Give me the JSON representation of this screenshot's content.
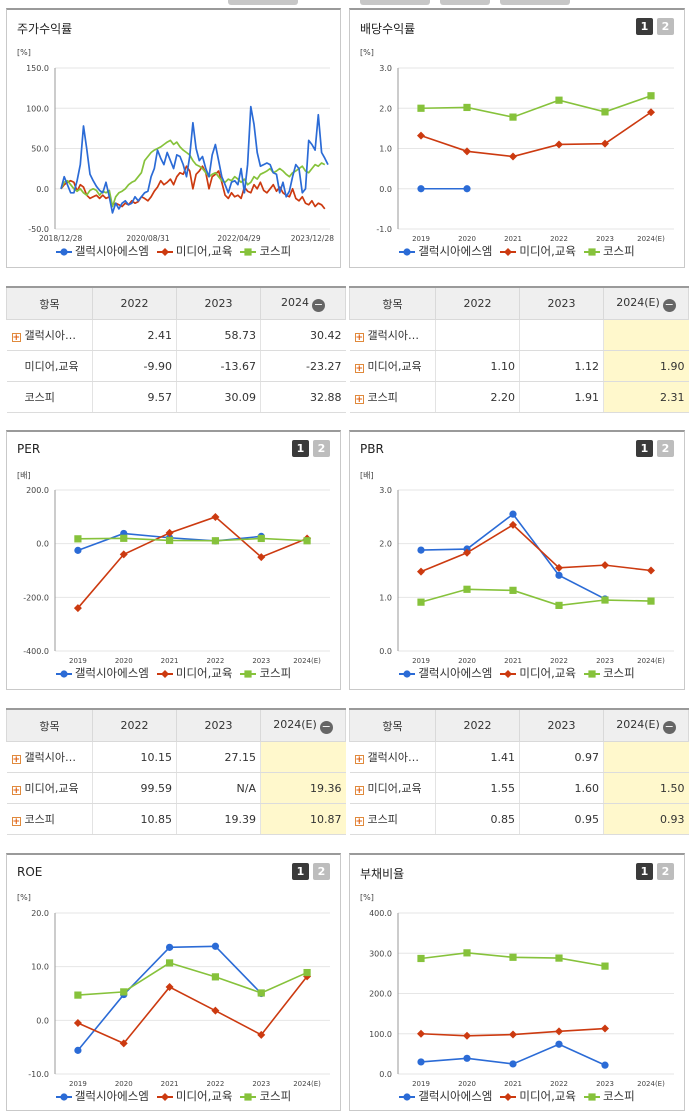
{
  "legend_series": [
    "갤럭시아에스엠",
    "미디어,교육",
    "코스피"
  ],
  "colors": {
    "s1": "#2b6bd6",
    "s2": "#cc3a10",
    "s3": "#86c23b"
  },
  "buttons": {
    "one": "1",
    "two": "2"
  },
  "table_common": {
    "col_name": "항목",
    "col_2022": "2022",
    "col_2023": "2023",
    "col_2024": "2024",
    "col_2024e": "2024(E)"
  },
  "panels": {
    "stock": {
      "title": "주가수익률",
      "unit": "[%]"
    },
    "dividend": {
      "title": "배당수익률",
      "unit": "[%]"
    },
    "per": {
      "title": "PER",
      "unit": "[배]"
    },
    "pbr": {
      "title": "PBR",
      "unit": "[배]"
    },
    "roe": {
      "title": "ROE",
      "unit": "[%]"
    },
    "debt": {
      "title": "부채비율",
      "unit": "[%]"
    }
  },
  "tables": {
    "stock": {
      "rows": [
        {
          "name": "갤럭시아…",
          "plus": true,
          "v": [
            "2.41",
            "58.73",
            "30.42"
          ]
        },
        {
          "name": "미디어,교육",
          "plus": false,
          "v": [
            "-9.90",
            "-13.67",
            "-23.27"
          ]
        },
        {
          "name": "코스피",
          "plus": false,
          "v": [
            "9.57",
            "30.09",
            "32.88"
          ]
        }
      ]
    },
    "dividend": {
      "rows": [
        {
          "name": "갤럭시아…",
          "plus": true,
          "v": [
            "",
            "",
            ""
          ]
        },
        {
          "name": "미디어,교육",
          "plus": true,
          "v": [
            "1.10",
            "1.12",
            "1.90"
          ]
        },
        {
          "name": "코스피",
          "plus": true,
          "v": [
            "2.20",
            "1.91",
            "2.31"
          ]
        }
      ]
    },
    "per": {
      "rows": [
        {
          "name": "갤럭시아…",
          "plus": true,
          "v": [
            "10.15",
            "27.15",
            ""
          ]
        },
        {
          "name": "미디어,교육",
          "plus": true,
          "v": [
            "99.59",
            "N/A",
            "19.36"
          ]
        },
        {
          "name": "코스피",
          "plus": true,
          "v": [
            "10.85",
            "19.39",
            "10.87"
          ]
        }
      ]
    },
    "pbr": {
      "rows": [
        {
          "name": "갤럭시아…",
          "plus": true,
          "v": [
            "1.41",
            "0.97",
            ""
          ]
        },
        {
          "name": "미디어,교육",
          "plus": true,
          "v": [
            "1.55",
            "1.60",
            "1.50"
          ]
        },
        {
          "name": "코스피",
          "plus": true,
          "v": [
            "0.85",
            "0.95",
            "0.93"
          ]
        }
      ]
    }
  },
  "chart_data": [
    {
      "id": "stock",
      "type": "line",
      "ylim": [
        -50,
        150
      ],
      "yticks": [
        "150.0",
        "100.0",
        "50.0",
        "0.0",
        "-50.0"
      ],
      "xticks": [
        "2018/12/28",
        "2020/08/31",
        "2022/04/29",
        "2023/12/28"
      ],
      "series": [
        {
          "name": "갤럭시아에스엠",
          "values": [
            0,
            15,
            5,
            -5,
            -5,
            10,
            30,
            78,
            50,
            18,
            10,
            3,
            -2,
            -5,
            8,
            -10,
            -30,
            -18,
            -25,
            -18,
            -15,
            -20,
            -18,
            -10,
            -15,
            -10,
            -5,
            -3,
            15,
            25,
            48,
            38,
            30,
            45,
            35,
            25,
            42,
            40,
            30,
            15,
            40,
            82,
            50,
            35,
            40,
            25,
            15,
            42,
            55,
            35,
            15,
            5,
            -5,
            8,
            10,
            5,
            25,
            -5,
            30,
            102,
            80,
            45,
            28,
            30,
            32,
            30,
            20,
            18,
            -5,
            8,
            -10,
            -3,
            15,
            30,
            25,
            -5,
            0,
            60,
            55,
            48,
            92,
            45,
            38,
            30
          ]
        },
        {
          "name": "미디어,교육",
          "values": [
            0,
            5,
            8,
            10,
            8,
            -3,
            5,
            2,
            -8,
            -12,
            -10,
            -8,
            -12,
            -8,
            -12,
            -10,
            -20,
            -18,
            -20,
            -22,
            -18,
            -20,
            -15,
            -18,
            -16,
            -10,
            -12,
            -15,
            -10,
            -3,
            2,
            10,
            5,
            8,
            12,
            5,
            15,
            20,
            18,
            28,
            22,
            0,
            18,
            22,
            28,
            20,
            0,
            15,
            18,
            22,
            8,
            -8,
            -12,
            -5,
            -10,
            -8,
            -12,
            2,
            -3,
            -5,
            5,
            0,
            8,
            -2,
            -5,
            0,
            5,
            -3,
            2,
            -5,
            -8,
            -10,
            0,
            -12,
            -15,
            -10,
            -18,
            -20,
            -15,
            -22,
            -18,
            -20,
            -25
          ]
        },
        {
          "name": "코스피",
          "values": [
            0,
            8,
            10,
            5,
            0,
            -3,
            0,
            -5,
            -8,
            -2,
            0,
            -2,
            -8,
            -3,
            -5,
            -2,
            -22,
            -10,
            -5,
            -3,
            0,
            5,
            8,
            10,
            15,
            20,
            35,
            40,
            45,
            48,
            50,
            52,
            55,
            58,
            60,
            55,
            58,
            52,
            48,
            45,
            42,
            35,
            30,
            28,
            25,
            20,
            15,
            18,
            20,
            15,
            10,
            8,
            12,
            10,
            15,
            12,
            8,
            12,
            5,
            8,
            15,
            12,
            18,
            20,
            22,
            25,
            20,
            22,
            25,
            22,
            18,
            15,
            20,
            22,
            25,
            28,
            22,
            20,
            25,
            30,
            28,
            32,
            30
          ]
        }
      ]
    },
    {
      "id": "dividend",
      "type": "line",
      "ylim": [
        -1,
        3
      ],
      "yticks": [
        "3.0",
        "2.0",
        "1.0",
        "0.0",
        "-1.0"
      ],
      "categories": [
        "2019",
        "2020",
        "2021",
        "2022",
        "2023",
        "2024(E)"
      ],
      "series": [
        {
          "name": "갤럭시아에스엠",
          "values": [
            0,
            0,
            null,
            null,
            null,
            null
          ]
        },
        {
          "name": "미디어,교육",
          "values": [
            1.32,
            0.93,
            0.8,
            1.1,
            1.12,
            1.9
          ]
        },
        {
          "name": "코스피",
          "values": [
            2.0,
            2.02,
            1.78,
            2.2,
            1.91,
            2.31
          ]
        }
      ]
    },
    {
      "id": "per",
      "type": "line",
      "ylim": [
        -400,
        200
      ],
      "yticks": [
        "200.0",
        "0.0",
        "-200.0",
        "-400.0"
      ],
      "categories": [
        "2019",
        "2020",
        "2021",
        "2022",
        "2023",
        "2024(E)"
      ],
      "series": [
        {
          "name": "갤럭시아에스엠",
          "values": [
            -25,
            38,
            22,
            10.15,
            27.15,
            null
          ]
        },
        {
          "name": "미디어,교육",
          "values": [
            -240,
            -40,
            40,
            99.59,
            -50,
            19.36
          ]
        },
        {
          "name": "코스피",
          "values": [
            18,
            20,
            12,
            10.85,
            19.39,
            10.87
          ]
        }
      ]
    },
    {
      "id": "pbr",
      "type": "line",
      "ylim": [
        0,
        3
      ],
      "yticks": [
        "3.0",
        "2.0",
        "1.0",
        "0.0"
      ],
      "categories": [
        "2019",
        "2020",
        "2021",
        "2022",
        "2023",
        "2024(E)"
      ],
      "series": [
        {
          "name": "갤럭시아에스엠",
          "values": [
            1.88,
            1.9,
            2.55,
            1.41,
            0.97,
            null
          ]
        },
        {
          "name": "미디어,교육",
          "values": [
            1.48,
            1.83,
            2.35,
            1.55,
            1.6,
            1.5
          ]
        },
        {
          "name": "코스피",
          "values": [
            0.91,
            1.15,
            1.13,
            0.85,
            0.95,
            0.93
          ]
        }
      ]
    },
    {
      "id": "roe",
      "type": "line",
      "ylim": [
        -10,
        20
      ],
      "yticks": [
        "20.0",
        "10.0",
        "0.0",
        "-10.0"
      ],
      "categories": [
        "2019",
        "2020",
        "2021",
        "2022",
        "2023",
        "2024(E)"
      ],
      "series": [
        {
          "name": "갤럭시아에스엠",
          "values": [
            -5.6,
            4.8,
            13.6,
            13.8,
            5.0,
            null
          ]
        },
        {
          "name": "미디어,교육",
          "values": [
            -0.5,
            -4.3,
            6.2,
            1.8,
            -2.7,
            8.2
          ]
        },
        {
          "name": "코스피",
          "values": [
            4.7,
            5.3,
            10.7,
            8.1,
            5.1,
            8.9
          ]
        }
      ]
    },
    {
      "id": "debt",
      "type": "line",
      "ylim": [
        0,
        400
      ],
      "yticks": [
        "400.0",
        "300.0",
        "200.0",
        "100.0",
        "0.0"
      ],
      "categories": [
        "2019",
        "2020",
        "2021",
        "2022",
        "2023",
        "2024(E)"
      ],
      "series": [
        {
          "name": "갤럭시아에스엠",
          "values": [
            30,
            39,
            25,
            74,
            22,
            null
          ]
        },
        {
          "name": "미디어,교육",
          "values": [
            100,
            95,
            98,
            106,
            113,
            null
          ]
        },
        {
          "name": "코스피",
          "values": [
            287,
            301,
            290,
            288,
            268,
            null
          ]
        }
      ]
    }
  ]
}
